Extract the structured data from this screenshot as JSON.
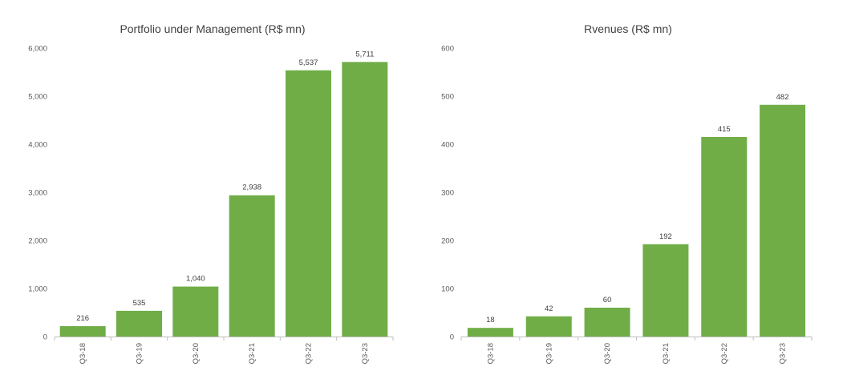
{
  "colors": {
    "bar": "#70ad47",
    "axis": "#bfbfbf",
    "text": "#404040"
  },
  "chart_data": [
    {
      "type": "bar",
      "title": "Portfolio under Management (R$ mn)",
      "categories": [
        "Q3-18",
        "Q3-19",
        "Q3-20",
        "Q3-21",
        "Q3-22",
        "Q3-23"
      ],
      "values": [
        216,
        535,
        1040,
        2938,
        5537,
        5711
      ],
      "value_labels": [
        "216",
        "535",
        "1,040",
        "2,938",
        "5,537",
        "5,711"
      ],
      "ylim": [
        0,
        6000
      ],
      "yticks": [
        0,
        1000,
        2000,
        3000,
        4000,
        5000,
        6000
      ],
      "ytick_labels": [
        "0",
        "1,000",
        "2,000",
        "3,000",
        "4,000",
        "5,000",
        "6,000"
      ],
      "grid": false,
      "legend": "none"
    },
    {
      "type": "bar",
      "title": "Rvenues (R$ mn)",
      "categories": [
        "Q3-18",
        "Q3-19",
        "Q3-20",
        "Q3-21",
        "Q3-22",
        "Q3-23"
      ],
      "values": [
        18,
        42,
        60,
        192,
        415,
        482
      ],
      "value_labels": [
        "18",
        "42",
        "60",
        "192",
        "415",
        "482"
      ],
      "ylim": [
        0,
        600
      ],
      "yticks": [
        0,
        100,
        200,
        300,
        400,
        500,
        600
      ],
      "ytick_labels": [
        "0",
        "100",
        "200",
        "300",
        "400",
        "500",
        "600"
      ],
      "grid": false,
      "legend": "none"
    }
  ]
}
